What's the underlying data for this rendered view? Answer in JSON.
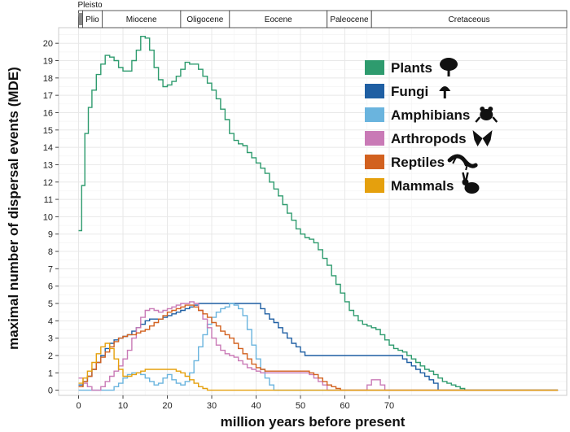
{
  "chart_data": {
    "type": "line",
    "xlabel": "million years before present",
    "ylabel": "maximal number of dispersal events (MDE)",
    "xlim": [
      -4.5,
      110
    ],
    "ylim": [
      -0.3,
      20.9
    ],
    "x_ticks": [
      0,
      10,
      20,
      30,
      40,
      50,
      60,
      70
    ],
    "y_ticks": [
      0,
      1,
      2,
      3,
      4,
      5,
      6,
      7,
      8,
      9,
      10,
      11,
      12,
      13,
      14,
      15,
      16,
      17,
      18,
      19,
      20
    ],
    "grid": true,
    "legend_position": "top-right",
    "epochs": [
      {
        "label": "Pleisto",
        "start": 0,
        "end": 0.9
      },
      {
        "label": "Plio",
        "start": 0.9,
        "end": 5.3
      },
      {
        "label": "Miocene",
        "start": 5.3,
        "end": 23
      },
      {
        "label": "Oligocene",
        "start": 23,
        "end": 34
      },
      {
        "label": "Eocene",
        "start": 34,
        "end": 56
      },
      {
        "label": "Paleocene",
        "start": 56,
        "end": 66
      },
      {
        "label": "Cretaceous",
        "start": 66,
        "end": 110
      }
    ],
    "series": [
      {
        "name": "Plants",
        "color": "#2e9b6e",
        "icon": "tree-icon",
        "x": [
          0,
          0.7,
          1.4,
          2.2,
          3,
          4,
          5,
          6,
          7,
          8,
          9,
          10,
          11,
          12,
          13,
          14,
          15,
          16,
          17,
          18,
          19,
          20,
          21,
          22,
          23,
          24,
          25,
          26,
          27,
          28,
          29,
          30,
          31,
          32,
          33,
          34,
          35,
          36,
          37,
          38,
          39,
          40,
          41,
          42,
          43,
          44,
          45,
          46,
          47,
          48,
          49,
          50,
          51,
          52,
          53,
          54,
          55,
          56,
          57,
          58,
          59,
          60,
          61,
          62,
          63,
          64,
          65,
          66,
          67,
          68,
          69,
          70,
          71,
          72,
          73,
          74,
          75,
          76,
          77,
          78,
          79,
          80,
          81,
          82,
          83,
          84,
          85,
          86,
          87,
          88,
          108
        ],
        "y": [
          9.2,
          11.8,
          14.8,
          16.3,
          17.3,
          18.2,
          18.8,
          19.3,
          19.2,
          19,
          18.6,
          18.4,
          18.4,
          19,
          19.6,
          20.4,
          20.3,
          19.6,
          18.6,
          17.9,
          17.5,
          17.6,
          17.8,
          18.1,
          18.5,
          18.9,
          18.8,
          18.8,
          18.5,
          18.1,
          17.7,
          17.3,
          16.8,
          16.2,
          15.6,
          14.8,
          14.4,
          14.2,
          14.1,
          13.7,
          13.4,
          13.1,
          12.8,
          12.5,
          12,
          11.6,
          11.2,
          10.7,
          10.2,
          9.8,
          9.3,
          9,
          8.8,
          8.7,
          8.5,
          8.1,
          7.6,
          7.2,
          6.6,
          6.1,
          5.6,
          5.1,
          4.6,
          4.3,
          4,
          3.8,
          3.7,
          3.6,
          3.5,
          3.2,
          2.9,
          2.6,
          2.4,
          2.3,
          2.2,
          2,
          1.8,
          1.6,
          1.4,
          1.2,
          1.1,
          0.9,
          0.7,
          0.5,
          0.4,
          0.3,
          0.2,
          0.1,
          0,
          0,
          0
        ]
      },
      {
        "name": "Fungi",
        "color": "#1f5fa3",
        "icon": "mushroom-icon",
        "x": [
          0,
          1,
          2,
          3,
          4,
          5,
          6,
          7,
          8,
          9,
          10,
          11,
          12,
          13,
          14,
          15,
          16,
          17,
          18,
          19,
          20,
          21,
          22,
          23,
          24,
          25,
          26,
          27,
          28,
          29,
          30,
          31,
          32,
          33,
          34,
          35,
          36,
          37,
          38,
          39,
          40,
          41,
          42,
          43,
          44,
          45,
          46,
          47,
          48,
          49,
          50,
          51,
          52,
          60,
          70,
          73,
          74,
          75,
          76,
          77,
          78,
          79,
          80,
          81,
          108
        ],
        "y": [
          0.3,
          0.5,
          0.8,
          1.2,
          1.6,
          2,
          2.4,
          2.7,
          2.9,
          3,
          3.1,
          3.2,
          3.4,
          3.6,
          3.8,
          4,
          4.1,
          4.1,
          4.1,
          4.2,
          4.3,
          4.4,
          4.5,
          4.6,
          4.7,
          4.8,
          4.9,
          5,
          5,
          5,
          5,
          5,
          5,
          5,
          5,
          5,
          5,
          5,
          5,
          5,
          5,
          4.7,
          4.4,
          4.1,
          3.9,
          3.6,
          3.3,
          3,
          2.7,
          2.5,
          2.2,
          2,
          2,
          2,
          2,
          1.8,
          1.6,
          1.4,
          1.2,
          1,
          0.8,
          0.6,
          0.4,
          0,
          0
        ]
      },
      {
        "name": "Amphibians",
        "color": "#6ab4de",
        "icon": "frog-icon",
        "x": [
          0,
          1,
          2,
          3,
          4,
          5,
          6,
          7,
          8,
          9,
          10,
          11,
          12,
          13,
          14,
          15,
          16,
          17,
          18,
          19,
          20,
          21,
          22,
          23,
          24,
          25,
          26,
          27,
          28,
          29,
          30,
          31,
          32,
          33,
          34,
          35,
          36,
          37,
          38,
          39,
          40,
          41,
          42,
          43,
          44,
          108
        ],
        "y": [
          0,
          0,
          0,
          0,
          0,
          0,
          0,
          0,
          0.2,
          0.4,
          0.7,
          0.9,
          1,
          1,
          0.9,
          0.7,
          0.5,
          0.3,
          0.4,
          0.7,
          0.9,
          0.6,
          0.4,
          0.3,
          0.5,
          1,
          1.7,
          2.5,
          3.2,
          3.8,
          4.2,
          4.5,
          4.7,
          4.8,
          5,
          4.9,
          4.7,
          4.3,
          3.5,
          2.6,
          1.8,
          1.2,
          0.7,
          0.3,
          0,
          0
        ]
      },
      {
        "name": "Arthropods",
        "color": "#c97ab6",
        "icon": "butterfly-icon",
        "x": [
          0,
          1,
          2,
          3,
          4,
          5,
          6,
          7,
          8,
          9,
          10,
          11,
          12,
          13,
          14,
          15,
          16,
          17,
          18,
          19,
          20,
          21,
          22,
          23,
          24,
          25,
          26,
          27,
          28,
          29,
          30,
          31,
          32,
          33,
          34,
          35,
          36,
          37,
          38,
          39,
          40,
          41,
          42,
          43,
          44,
          45,
          46,
          47,
          48,
          49,
          50,
          51,
          52,
          53,
          54,
          55,
          56,
          57,
          58,
          59,
          60,
          61,
          62,
          63,
          64,
          65,
          66,
          67,
          68,
          69,
          108
        ],
        "y": [
          0.7,
          0.4,
          0.2,
          0,
          0,
          0.2,
          0.5,
          0.8,
          1.1,
          1.4,
          1.8,
          2.3,
          3,
          3.6,
          4.2,
          4.6,
          4.7,
          4.6,
          4.5,
          4.6,
          4.7,
          4.8,
          4.9,
          5,
          5,
          5.1,
          5,
          4.6,
          4.1,
          3.6,
          3,
          2.6,
          2.3,
          2.1,
          2,
          1.9,
          1.7,
          1.5,
          1.3,
          1.2,
          1.1,
          1,
          1,
          1,
          1,
          1,
          1,
          1,
          1,
          1,
          1,
          1,
          0.9,
          0.7,
          0.5,
          0.3,
          0,
          0,
          0,
          0,
          0,
          0,
          0,
          0,
          0,
          0.3,
          0.6,
          0.6,
          0.3,
          0,
          0
        ]
      },
      {
        "name": "Reptiles",
        "color": "#d2611f",
        "icon": "lizard-icon",
        "x": [
          0,
          1,
          2,
          3,
          4,
          5,
          6,
          7,
          8,
          9,
          10,
          11,
          12,
          13,
          14,
          15,
          16,
          17,
          18,
          19,
          20,
          21,
          22,
          23,
          24,
          25,
          26,
          27,
          28,
          29,
          30,
          31,
          32,
          33,
          34,
          35,
          36,
          37,
          38,
          39,
          40,
          41,
          42,
          43,
          44,
          45,
          46,
          47,
          48,
          49,
          50,
          51,
          52,
          53,
          54,
          55,
          56,
          57,
          58,
          59,
          60,
          108
        ],
        "y": [
          0.2,
          0.5,
          0.8,
          1.2,
          1.6,
          1.9,
          2.2,
          2.5,
          2.8,
          3,
          3.1,
          3.2,
          3.2,
          3.3,
          3.4,
          3.5,
          3.7,
          3.9,
          4.1,
          4.3,
          4.5,
          4.6,
          4.7,
          4.8,
          4.9,
          4.9,
          4.8,
          4.6,
          4.4,
          4.2,
          3.9,
          3.7,
          3.4,
          3.2,
          3,
          2.7,
          2.4,
          2.1,
          1.8,
          1.5,
          1.3,
          1.2,
          1.1,
          1.1,
          1.1,
          1.1,
          1.1,
          1.1,
          1.1,
          1.1,
          1.1,
          1.1,
          1,
          0.9,
          0.7,
          0.5,
          0.3,
          0.2,
          0.1,
          0,
          0,
          0
        ]
      },
      {
        "name": "Mammals",
        "color": "#e5a00d",
        "icon": "rabbit-icon",
        "x": [
          0,
          1,
          2,
          3,
          4,
          5,
          6,
          7,
          8,
          9,
          10,
          11,
          12,
          13,
          14,
          15,
          16,
          17,
          18,
          19,
          20,
          21,
          22,
          23,
          24,
          25,
          26,
          27,
          28,
          29,
          30,
          108
        ],
        "y": [
          0.4,
          0.7,
          1.1,
          1.6,
          2.1,
          2.5,
          2.7,
          2.4,
          1.8,
          1.2,
          0.8,
          0.8,
          0.9,
          1,
          1.1,
          1.2,
          1.2,
          1.2,
          1.2,
          1.2,
          1.2,
          1.2,
          1.1,
          1,
          0.8,
          0.6,
          0.4,
          0.2,
          0.1,
          0,
          0,
          0
        ]
      }
    ]
  }
}
